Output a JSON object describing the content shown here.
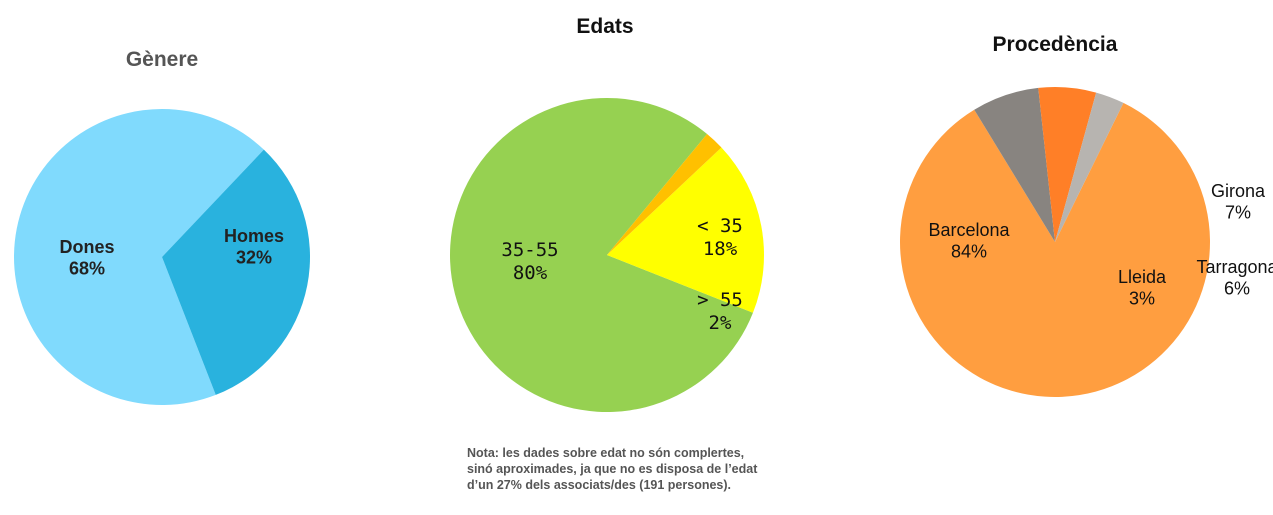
{
  "chart_data": [
    {
      "type": "pie",
      "title": "Gènere",
      "slices": [
        {
          "label": "Dones",
          "value": 68,
          "value_label": "68%",
          "color": "#80dafd"
        },
        {
          "label": "Homes",
          "value": 32,
          "value_label": "32%",
          "color": "#29b2de"
        }
      ]
    },
    {
      "type": "pie",
      "title": "Edats",
      "slices": [
        {
          "label": "35-55",
          "value": 80,
          "value_label": "80%",
          "color": "#96d151"
        },
        {
          "label": "< 35",
          "value": 18,
          "value_label": "18%",
          "color": "#ffff00"
        },
        {
          "label": "> 55",
          "value": 2,
          "value_label": "2%",
          "color": "#ffc000"
        }
      ]
    },
    {
      "type": "pie",
      "title": "Procedència",
      "slices": [
        {
          "label": "Barcelona",
          "value": 84,
          "value_label": "84%",
          "color": "#ff9e40"
        },
        {
          "label": "Girona",
          "value": 7,
          "value_label": "7%",
          "color": "#888480"
        },
        {
          "label": "Tarragona",
          "value": 6,
          "value_label": "6%",
          "color": "#ff7f27"
        },
        {
          "label": "Lleida",
          "value": 3,
          "value_label": "3%",
          "color": "#b7b4b0"
        }
      ]
    }
  ],
  "note": "Nota: les dades sobre edat no són complertes, sinó aproximades, ja que no es disposa de l’edat d’un 27% dels associats/des (191 persones)."
}
